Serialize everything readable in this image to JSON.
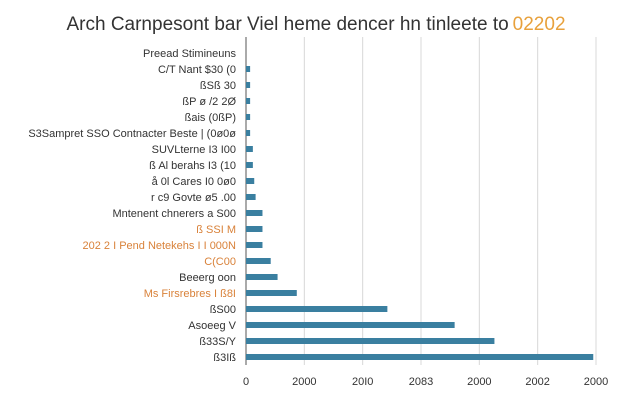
{
  "chart_data": {
    "type": "bar",
    "orientation": "horizontal",
    "title": "Arch Carnpesont bar Viel heme dencer hn tinleete to",
    "title_accent": "02202",
    "categories": [
      "Preead Stimineuns ",
      "C/T Nant $30 (0",
      "ßSß 30",
      "ßP  ø /2 2Ø",
      "ßais (0ßP)",
      "S3Sampret SSO  Contnacter Beste | (0ø0ø",
      "SUVLterne  I3 I00",
      "ß Al berahs I3 (10",
      "å 0l Cares I0 0ø0",
      "r c9 Govte  ø5 .00",
      "Mntenent  chnerers  a S00",
      "ß SSI M",
      "202 2  I Pend Netekehs I  I 000N",
      "C(C00",
      "Beeerg  oon",
      "Ms  Firsrebres I  ß8I",
      "ßS00",
      "Asoeeg  V",
      "ß33S/Y",
      "ß3Iß"
    ],
    "highlighted_categories": [
      11,
      12,
      13,
      15
    ],
    "values": [
      0,
      30,
      30,
      30,
      30,
      30,
      50,
      50,
      60,
      70,
      120,
      120,
      120,
      180,
      230,
      370,
      1030,
      1520,
      1810,
      2530
    ],
    "xlim": [
      0,
      2550
    ],
    "x_tick_labels": [
      "0",
      "2000",
      "20I0",
      "2083",
      "2000",
      "2002",
      "2000"
    ],
    "xlabel": "",
    "ylabel": "",
    "grid": "vertical",
    "legend": "none",
    "bar_color": "#3a7fa0",
    "highlight_label_color": "#d9823a"
  }
}
